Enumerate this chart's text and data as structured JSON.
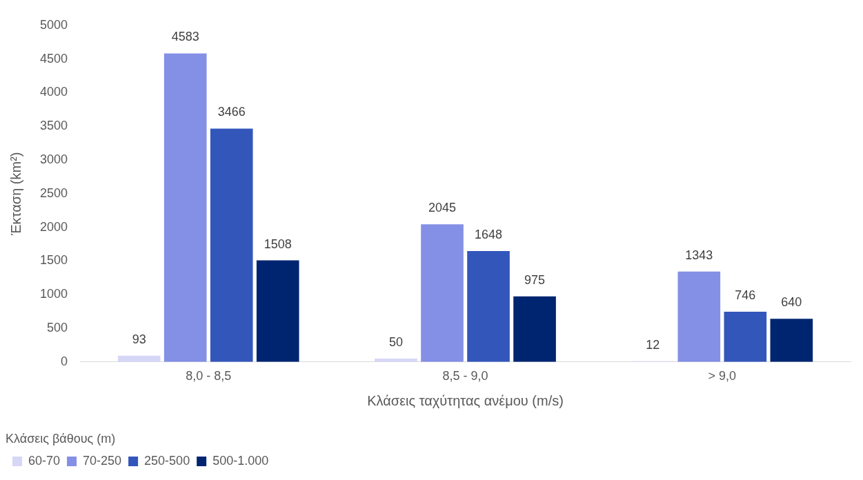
{
  "chart_data": {
    "type": "bar",
    "xlabel": "Κλάσεις ταχύτητας ανέμου (m/s)",
    "ylabel": "Έκταση (km²)",
    "legend_title": "Κλάσεις βάθους (m)",
    "categories": [
      "8,0 - 8,5",
      "8,5 - 9,0",
      "> 9,0"
    ],
    "series": [
      {
        "name": "60-70",
        "color": "#d6d6f7",
        "values": [
          93,
          50,
          12
        ]
      },
      {
        "name": "70-250",
        "color": "#8490e6",
        "values": [
          4583,
          2045,
          1343
        ]
      },
      {
        "name": "250-500",
        "color": "#3356bb",
        "values": [
          3466,
          1648,
          746
        ]
      },
      {
        "name": "500-1.000",
        "color": "#002570",
        "values": [
          1508,
          975,
          640
        ]
      }
    ],
    "ylim": [
      0,
      5000
    ],
    "yticks": [
      0,
      500,
      1000,
      1500,
      2000,
      2500,
      3000,
      3500,
      4000,
      4500,
      5000
    ],
    "grid": false,
    "legend": "bottom",
    "data_labels": true
  }
}
